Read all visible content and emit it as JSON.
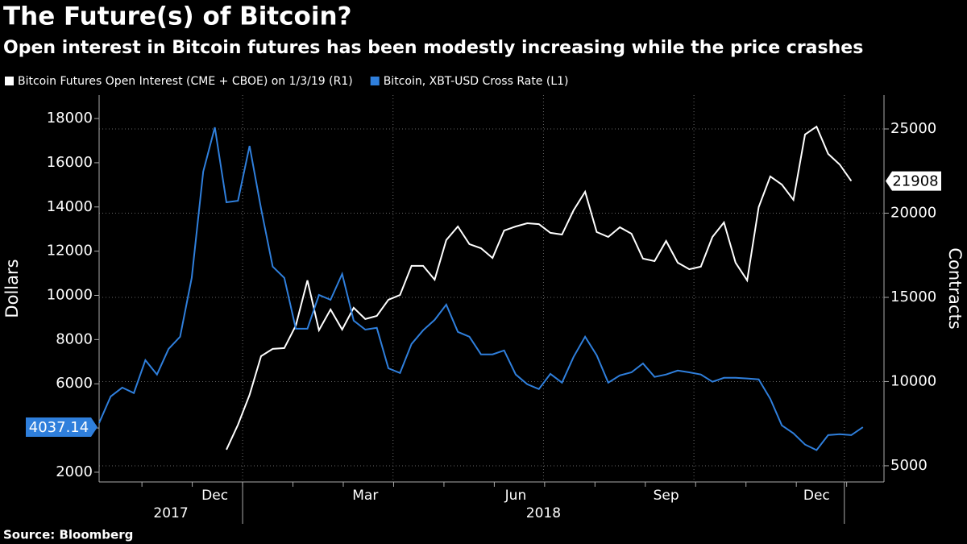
{
  "chart_data": {
    "type": "line",
    "title": "The Future(s) of Bitcoin?",
    "subtitle": "Open interest in Bitcoin futures has been modestly increasing while the price crashes",
    "source": "Source: Bloomberg",
    "y_label": "Dollars",
    "y2_label": "Contracts",
    "categories": [
      null,
      null,
      null,
      null,
      null,
      null,
      null,
      null,
      null,
      null,
      "Dec",
      null,
      null,
      null,
      null,
      null,
      null,
      null,
      null,
      null,
      null,
      null,
      null,
      "Mar",
      null,
      null,
      null,
      null,
      null,
      null,
      null,
      null,
      null,
      null,
      null,
      null,
      "Jun",
      null,
      null,
      null,
      null,
      null,
      null,
      null,
      null,
      null,
      null,
      null,
      null,
      "Sep",
      null,
      null,
      null,
      null,
      null,
      null,
      null,
      null,
      null,
      null,
      null,
      null,
      "Dec",
      null,
      null,
      null,
      null
    ],
    "x_groups": [
      {
        "label": "2017",
        "span": 13
      },
      {
        "label": "2018",
        "span": 52
      }
    ],
    "ylim": [
      1560,
      19060
    ],
    "yticks": [
      2000,
      4000,
      6000,
      8000,
      10000,
      12000,
      14000,
      16000,
      18000
    ],
    "y2lim": [
      4040,
      27010
    ],
    "y2ticks": [
      5000,
      10000,
      15000,
      20000,
      25000
    ],
    "grid": true,
    "series": [
      {
        "name": "Bitcoin Futures Open Interest (CME + CBOE) on 1/3/19 (R1)",
        "color": "#ffffff",
        "axis": "y2",
        "values": [
          null,
          null,
          null,
          null,
          null,
          null,
          null,
          null,
          null,
          null,
          null,
          5960,
          7440,
          9210,
          11510,
          11940,
          11990,
          13330,
          16010,
          13050,
          14280,
          13090,
          14380,
          13710,
          13900,
          14860,
          15140,
          16870,
          16870,
          16050,
          18400,
          19210,
          18160,
          17920,
          17340,
          18970,
          19210,
          19400,
          19350,
          18830,
          18730,
          20170,
          21270,
          18880,
          18590,
          19160,
          18780,
          17300,
          17150,
          18350,
          17060,
          16670,
          16820,
          18590,
          19450,
          17060,
          16010,
          20360,
          22180,
          21700,
          20790,
          24670,
          25140,
          23520,
          22890,
          21908,
          null
        ]
      },
      {
        "name": "Bitcoin, XBT-USD Cross Rate  (L1)",
        "color": "#2f7fdc",
        "axis": "y",
        "values": [
          4230,
          5430,
          5830,
          5580,
          7070,
          6420,
          7580,
          8130,
          10790,
          15600,
          17600,
          14210,
          14280,
          16760,
          13920,
          11300,
          10790,
          8490,
          8490,
          10020,
          9800,
          10970,
          8860,
          8450,
          8530,
          6700,
          6490,
          7800,
          8420,
          8890,
          9580,
          8350,
          8130,
          7330,
          7330,
          7510,
          6420,
          5980,
          5760,
          6450,
          6050,
          7220,
          8130,
          7290,
          6050,
          6380,
          6520,
          6920,
          6310,
          6420,
          6600,
          6520,
          6420,
          6090,
          6270,
          6270,
          6240,
          6200,
          5320,
          4120,
          3760,
          3250,
          3000,
          3680,
          3720,
          3680,
          4037.14
        ]
      }
    ]
  }
}
